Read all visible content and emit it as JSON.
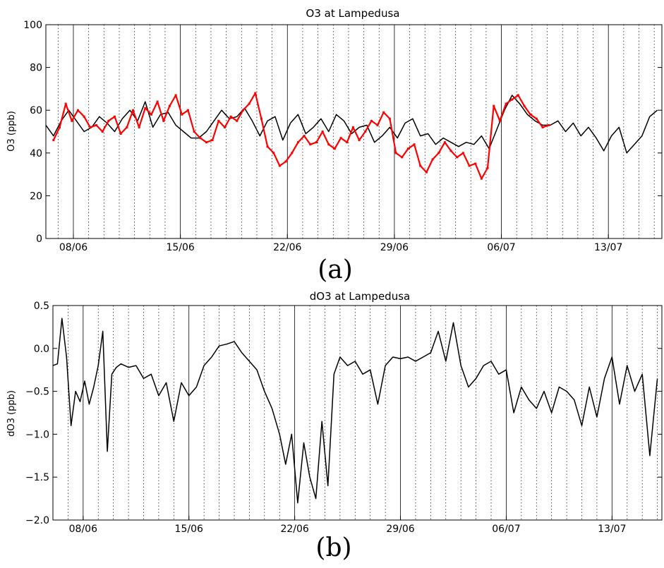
{
  "chart_data": [
    {
      "type": "line",
      "title": "O3 at Lampedusa",
      "ylabel": "O3 (ppb)",
      "xlabel": "",
      "caption": "(a)",
      "ylim": [
        0,
        100
      ],
      "yticks": [
        "0",
        "20",
        "40",
        "60",
        "80",
        "100"
      ],
      "xlim": [
        0,
        40.3
      ],
      "x_unit": "days from 2006-06-06 00:00 (axis prints dd/mm)",
      "xticks": [
        {
          "x": 1.8,
          "label": "08/06"
        },
        {
          "x": 8.8,
          "label": "15/06"
        },
        {
          "x": 15.8,
          "label": "22/06"
        },
        {
          "x": 22.8,
          "label": "29/06"
        },
        {
          "x": 29.8,
          "label": "06/07"
        },
        {
          "x": 36.8,
          "label": "13/07"
        }
      ],
      "grid": "vertical lines at each day (dotted), solid at week ticks",
      "series": [
        {
          "style": "line",
          "color": "#000000",
          "x": [
            0,
            0.5,
            1,
            1.5,
            2,
            2.5,
            3,
            3.5,
            4,
            4.5,
            5,
            5.5,
            6,
            6.5,
            7,
            7.5,
            8,
            8.5,
            9,
            9.5,
            10,
            10.5,
            11,
            11.5,
            12,
            12.5,
            13,
            13.5,
            14,
            14.5,
            15,
            15.5,
            16,
            16.5,
            17,
            17.5,
            18,
            18.5,
            19,
            19.5,
            20,
            20.5,
            21,
            21.5,
            22,
            22.5,
            23,
            23.5,
            24,
            24.5,
            25,
            25.5,
            26,
            26.5,
            27,
            27.5,
            28,
            28.5,
            29,
            29.5,
            30,
            30.5,
            31,
            31.5,
            32,
            32.5,
            33,
            33.5,
            34,
            34.5,
            35,
            35.5,
            36,
            36.5,
            37,
            37.5,
            38,
            38.5,
            39,
            39.5,
            40
          ],
          "y": [
            53,
            48,
            55,
            60,
            55,
            50,
            52,
            57,
            54,
            50,
            56,
            60,
            55,
            64,
            52,
            58,
            59,
            53,
            50,
            47,
            47,
            50,
            55,
            60,
            56,
            57,
            61,
            55,
            48,
            55,
            57,
            46,
            54,
            58,
            49,
            52,
            56,
            50,
            58,
            55,
            49,
            52,
            53,
            45,
            48,
            52,
            47,
            54,
            56,
            48,
            49,
            44,
            47,
            45,
            43,
            45,
            44,
            48,
            42,
            51,
            60,
            67,
            63,
            58,
            55,
            53,
            53,
            55,
            50,
            54,
            48,
            52,
            47,
            41,
            48,
            52,
            40,
            44,
            48,
            57,
            60
          ]
        },
        {
          "style": "points",
          "color": "#ff0000",
          "x": [
            0.5,
            0.9,
            1.3,
            1.7,
            2.1,
            2.5,
            2.9,
            3.3,
            3.7,
            4.1,
            4.5,
            4.9,
            5.3,
            5.7,
            6.1,
            6.5,
            6.9,
            7.3,
            7.7,
            8.1,
            8.5,
            8.9,
            9.3,
            9.7,
            10.1,
            10.5,
            10.9,
            11.3,
            11.7,
            12.1,
            12.5,
            12.9,
            13.3,
            13.7,
            14.1,
            14.5,
            14.9,
            15.3,
            15.7,
            16.1,
            16.5,
            16.9,
            17.3,
            17.7,
            18.1,
            18.5,
            18.9,
            19.3,
            19.7,
            20.1,
            20.5,
            20.9,
            21.3,
            21.7,
            22.1,
            22.5,
            22.9,
            23.3,
            23.7,
            24.1,
            24.5,
            24.9,
            25.3,
            25.7,
            26.1,
            26.5,
            26.9,
            27.3,
            27.7,
            28.1,
            28.5,
            28.9,
            29.3,
            29.7,
            30.1,
            30.5,
            30.9,
            31.3,
            31.7,
            32.1,
            32.5,
            32.9
          ],
          "y": [
            46,
            52,
            63,
            55,
            60,
            57,
            52,
            53,
            50,
            55,
            57,
            49,
            52,
            60,
            52,
            61,
            58,
            64,
            55,
            62,
            67,
            58,
            60,
            50,
            47,
            45,
            46,
            55,
            52,
            57,
            55,
            60,
            63,
            68,
            56,
            43,
            40,
            34,
            36,
            40,
            45,
            48,
            44,
            45,
            50,
            44,
            42,
            47,
            45,
            52,
            46,
            50,
            55,
            53,
            59,
            56,
            40,
            38,
            42,
            44,
            34,
            31,
            37,
            40,
            45,
            41,
            38,
            40,
            34,
            35,
            28,
            33,
            62,
            55,
            63,
            65,
            67,
            62,
            58,
            56,
            52,
            53
          ]
        }
      ]
    },
    {
      "type": "line",
      "title": "dO3 at Lampedusa",
      "ylabel": "dO3 (ppb)",
      "xlabel": "",
      "caption": "(b)",
      "ylim": [
        -2.0,
        0.5
      ],
      "yticks": [
        "−2.0",
        "−1.5",
        "−1.0",
        "−0.5",
        "0.0",
        "0.5"
      ],
      "xlim": [
        0,
        40.3
      ],
      "x_unit": "days from 2006-06-06 00:00 (axis prints dd/mm)",
      "xticks": [
        {
          "x": 2.0,
          "label": "08/06"
        },
        {
          "x": 9.0,
          "label": "15/06"
        },
        {
          "x": 16.0,
          "label": "22/06"
        },
        {
          "x": 23.0,
          "label": "29/06"
        },
        {
          "x": 30.0,
          "label": "06/07"
        },
        {
          "x": 37.0,
          "label": "13/07"
        }
      ],
      "grid": "vertical lines at each day (dotted), solid at week ticks",
      "series": [
        {
          "style": "line",
          "color": "#000000",
          "x": [
            0,
            0.3,
            0.6,
            0.9,
            1.2,
            1.5,
            1.8,
            2.1,
            2.4,
            2.7,
            3.0,
            3.3,
            3.6,
            3.9,
            4.2,
            4.5,
            5,
            5.5,
            6,
            6.5,
            7,
            7.5,
            8,
            8.5,
            9,
            9.5,
            10,
            10.5,
            11,
            11.5,
            12,
            12.5,
            13,
            13.5,
            14,
            14.5,
            15,
            15.4,
            15.8,
            16.2,
            16.6,
            17.0,
            17.4,
            17.8,
            18.2,
            18.6,
            19,
            19.5,
            20,
            20.5,
            21,
            21.5,
            22,
            22.5,
            23,
            23.5,
            24,
            24.5,
            25,
            25.5,
            26,
            26.5,
            27,
            27.5,
            28,
            28.5,
            29,
            29.5,
            30,
            30.5,
            31,
            31.5,
            32,
            32.5,
            33,
            33.5,
            34,
            34.5,
            35,
            35.5,
            36,
            36.5,
            37,
            37.5,
            38,
            38.5,
            39,
            39.5,
            40
          ],
          "y": [
            -0.2,
            -0.18,
            0.35,
            -0.1,
            -0.9,
            -0.5,
            -0.62,
            -0.38,
            -0.65,
            -0.45,
            -0.2,
            0.2,
            -1.2,
            -0.3,
            -0.22,
            -0.18,
            -0.22,
            -0.2,
            -0.35,
            -0.3,
            -0.55,
            -0.4,
            -0.85,
            -0.4,
            -0.55,
            -0.45,
            -0.2,
            -0.1,
            0.03,
            0.05,
            0.08,
            -0.05,
            -0.15,
            -0.25,
            -0.5,
            -0.7,
            -1.0,
            -1.35,
            -1.0,
            -1.8,
            -1.1,
            -1.5,
            -1.75,
            -0.85,
            -1.6,
            -0.3,
            -0.1,
            -0.2,
            -0.15,
            -0.3,
            -0.25,
            -0.65,
            -0.2,
            -0.1,
            -0.12,
            -0.1,
            -0.15,
            -0.1,
            -0.05,
            0.2,
            -0.15,
            0.3,
            -0.2,
            -0.45,
            -0.35,
            -0.2,
            -0.15,
            -0.3,
            -0.25,
            -0.75,
            -0.45,
            -0.6,
            -0.7,
            -0.5,
            -0.75,
            -0.45,
            -0.5,
            -0.6,
            -0.9,
            -0.45,
            -0.8,
            -0.35,
            -0.1,
            -0.65,
            -0.2,
            -0.5,
            -0.3,
            -1.25,
            -0.35
          ]
        }
      ]
    }
  ]
}
